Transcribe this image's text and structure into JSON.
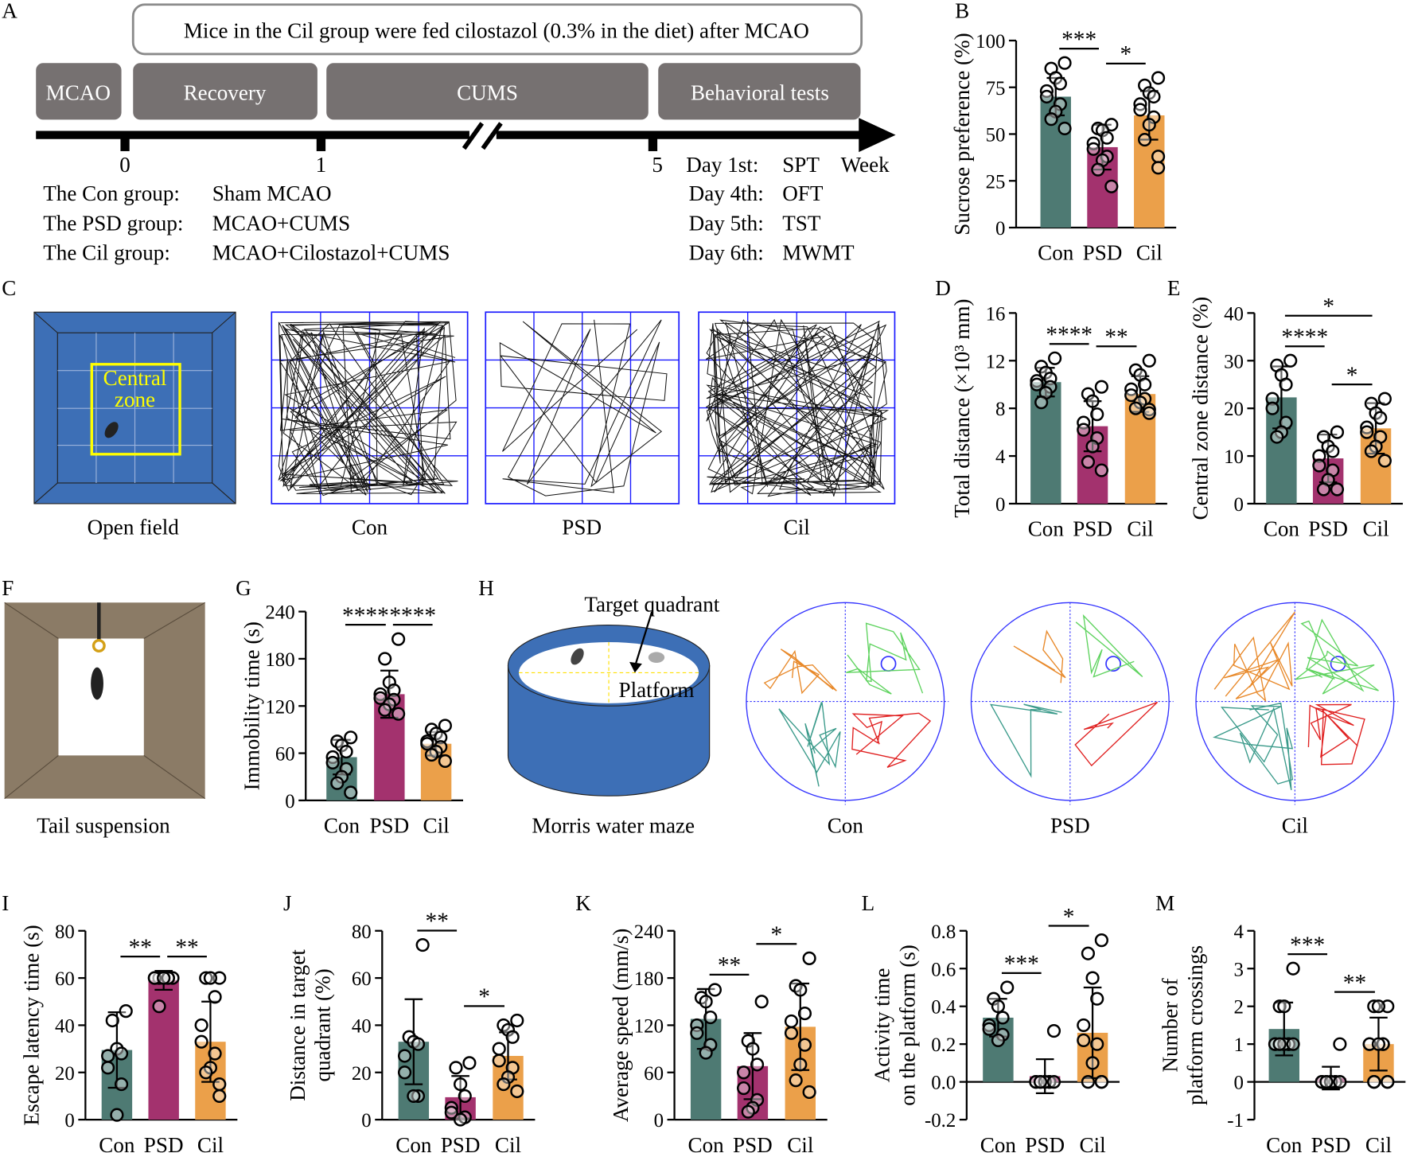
{
  "panel_a": {
    "label": "A",
    "note": "Mice in the Cil group were fed cilostazol (0.3% in the diet) after MCAO",
    "phases": [
      "MCAO",
      "Recovery",
      "CUMS",
      "Behavioral tests"
    ],
    "timeline_ticks": [
      "0",
      "1",
      "5"
    ],
    "unit": "Week",
    "groups": [
      [
        "The Con group:",
        "Sham MCAO"
      ],
      [
        "The PSD group:",
        "MCAO+CUMS"
      ],
      [
        "The  Cil  group:",
        "MCAO+Cilostazol+CUMS"
      ]
    ],
    "schedule": [
      [
        "Day  1st:",
        "SPT"
      ],
      [
        "Day 4th:",
        "OFT"
      ],
      [
        "Day 5th:",
        "TST"
      ],
      [
        "Day 6th:",
        "MWMT"
      ]
    ]
  },
  "panel_c": {
    "label": "C",
    "arena": "Open field",
    "zone": [
      "Central",
      "zone"
    ],
    "groups": [
      "Con",
      "PSD",
      "Cil"
    ]
  },
  "panel_f": {
    "label": "F",
    "caption": "Tail suspension"
  },
  "panel_h": {
    "label": "H",
    "target": "Target quadrant",
    "platform": "Platform",
    "caption": "Morris water maze",
    "groups": [
      "Con",
      "PSD",
      "Cil"
    ]
  },
  "chart_data": [
    {
      "type": "bar",
      "panel": "B",
      "ylabel": [
        "Sucrose preference (%)"
      ],
      "categories": [
        "Con",
        "PSD",
        "Cil"
      ],
      "colors": [
        "#4e7a73",
        "#a3326e",
        "#eba04a"
      ],
      "values": [
        70,
        43,
        60
      ],
      "errors": [
        10,
        12,
        13
      ],
      "points": [
        [
          88,
          85,
          80,
          77,
          73,
          70,
          66,
          62,
          58,
          53
        ],
        [
          55,
          53,
          52,
          48,
          45,
          42,
          38,
          36,
          31,
          22
        ],
        [
          80,
          76,
          72,
          70,
          66,
          63,
          59,
          55,
          47,
          38,
          32
        ]
      ],
      "ylim": [
        0,
        100
      ],
      "yticks": [
        0,
        25,
        50,
        75,
        100
      ],
      "comparisons": [
        {
          "label": "***",
          "between": [
            "Con",
            "PSD"
          ]
        },
        {
          "label": "*",
          "between": [
            "PSD",
            "Cil"
          ]
        }
      ]
    },
    {
      "type": "bar",
      "panel": "D",
      "ylabel": [
        "Total distance (×10³ mm)"
      ],
      "categories": [
        "Con",
        "PSD",
        "Cil"
      ],
      "colors": [
        "#4e7a73",
        "#a3326e",
        "#eba04a"
      ],
      "values": [
        10.2,
        6.5,
        9.2
      ],
      "errors": [
        1.2,
        2.1,
        1.5
      ],
      "points": [
        [
          12.2,
          11.5,
          11,
          10.5,
          10.3,
          10,
          9.8,
          9.3,
          8.5
        ],
        [
          9.8,
          9.2,
          8.6,
          7.5,
          6.8,
          6.2,
          5.5,
          4.8,
          3.5,
          2.8
        ],
        [
          12,
          11.2,
          10.8,
          10,
          9.6,
          9.1,
          8.8,
          8.5,
          8,
          7.9,
          7.6
        ]
      ],
      "ylim": [
        0,
        16
      ],
      "yticks": [
        0,
        4,
        8,
        12,
        16
      ],
      "comparisons": [
        {
          "label": "****",
          "between": [
            "Con",
            "PSD"
          ]
        },
        {
          "label": "**",
          "between": [
            "PSD",
            "Cil"
          ]
        }
      ]
    },
    {
      "type": "bar",
      "panel": "E",
      "ylabel": [
        "Central zone distance (%)"
      ],
      "categories": [
        "Con",
        "PSD",
        "Cil"
      ],
      "colors": [
        "#4e7a73",
        "#a3326e",
        "#eba04a"
      ],
      "values": [
        22.3,
        9.5,
        15.8
      ],
      "errors": [
        6.5,
        5,
        5.3
      ],
      "points": [
        [
          30,
          29,
          27,
          25,
          22,
          20,
          17,
          15,
          14
        ],
        [
          15,
          14,
          12,
          11,
          10,
          8,
          7,
          5,
          3,
          3
        ],
        [
          22,
          21,
          19,
          18,
          16,
          15,
          14,
          12,
          11,
          9
        ]
      ],
      "ylim": [
        0,
        40
      ],
      "yticks": [
        0,
        10,
        20,
        30,
        40
      ],
      "comparisons": [
        {
          "label": "****",
          "between": [
            "Con",
            "PSD"
          ]
        },
        {
          "label": "*",
          "between": [
            "PSD",
            "Cil"
          ]
        },
        {
          "label": "*",
          "between": [
            "Con",
            "Cil"
          ]
        }
      ]
    },
    {
      "type": "bar",
      "panel": "G",
      "ylabel": [
        "Immobility time (s)"
      ],
      "categories": [
        "Con",
        "PSD",
        "Cil"
      ],
      "colors": [
        "#4e7a73",
        "#a3326e",
        "#eba04a"
      ],
      "values": [
        55,
        135,
        72
      ],
      "errors": [
        22,
        30,
        15
      ],
      "points": [
        [
          80,
          75,
          70,
          62,
          55,
          48,
          40,
          30,
          22,
          10
        ],
        [
          205,
          180,
          150,
          140,
          135,
          130,
          128,
          122,
          115,
          110
        ],
        [
          95,
          90,
          85,
          80,
          75,
          72,
          68,
          62,
          58,
          50
        ]
      ],
      "ylim": [
        0,
        240
      ],
      "yticks": [
        0,
        60,
        120,
        180,
        240
      ],
      "comparisons": [
        {
          "label": "****",
          "between": [
            "Con",
            "PSD"
          ]
        },
        {
          "label": "****",
          "between": [
            "PSD",
            "Cil"
          ]
        }
      ]
    },
    {
      "type": "bar",
      "panel": "I",
      "ylabel": [
        "Escape latency time (s)"
      ],
      "categories": [
        "Con",
        "PSD",
        "Cil"
      ],
      "colors": [
        "#4e7a73",
        "#a3326e",
        "#eba04a"
      ],
      "values": [
        29.5,
        59,
        33
      ],
      "errors": [
        16,
        4,
        17
      ],
      "points": [
        [
          46,
          42,
          30,
          28,
          27,
          22,
          15,
          2
        ],
        [
          60,
          60,
          60,
          60,
          60,
          60,
          60,
          60,
          48
        ],
        [
          60,
          60,
          60,
          52,
          40,
          33,
          28,
          22,
          20,
          15,
          10
        ]
      ],
      "ylim": [
        0,
        80
      ],
      "yticks": [
        0,
        20,
        40,
        60,
        80
      ],
      "comparisons": [
        {
          "label": "**",
          "between": [
            "Con",
            "PSD"
          ]
        },
        {
          "label": "**",
          "between": [
            "PSD",
            "Cil"
          ]
        }
      ]
    },
    {
      "type": "bar",
      "panel": "J",
      "ylabel": [
        "Distance in target",
        "quadrant (%)"
      ],
      "categories": [
        "Con",
        "PSD",
        "Cil"
      ],
      "colors": [
        "#4e7a73",
        "#a3326e",
        "#eba04a"
      ],
      "values": [
        33,
        9.5,
        27
      ],
      "errors": [
        18,
        9,
        10
      ],
      "points": [
        [
          74,
          35,
          33,
          32,
          27,
          20,
          10,
          10
        ],
        [
          24,
          22,
          15,
          10,
          5,
          3,
          1,
          0
        ],
        [
          42,
          40,
          38,
          35,
          30,
          25,
          22,
          18,
          15,
          12
        ]
      ],
      "ylim": [
        0,
        80
      ],
      "yticks": [
        0,
        20,
        40,
        60,
        80
      ],
      "comparisons": [
        {
          "label": "**",
          "between": [
            "Con",
            "PSD"
          ]
        },
        {
          "label": "*",
          "between": [
            "PSD",
            "Cil"
          ]
        }
      ]
    },
    {
      "type": "bar",
      "panel": "K",
      "ylabel": [
        "Average speed (mm/s)"
      ],
      "categories": [
        "Con",
        "PSD",
        "Cil"
      ],
      "colors": [
        "#4e7a73",
        "#a3326e",
        "#eba04a"
      ],
      "values": [
        128,
        68,
        118
      ],
      "errors": [
        38,
        42,
        55
      ],
      "points": [
        [
          165,
          155,
          150,
          130,
          120,
          110,
          95,
          85
        ],
        [
          150,
          100,
          90,
          70,
          60,
          40,
          25,
          15,
          10
        ],
        [
          205,
          170,
          165,
          135,
          125,
          110,
          95,
          70,
          50,
          35
        ]
      ],
      "ylim": [
        0,
        240
      ],
      "yticks": [
        0,
        60,
        120,
        180,
        240
      ],
      "comparisons": [
        {
          "label": "**",
          "between": [
            "Con",
            "PSD"
          ]
        },
        {
          "label": "*",
          "between": [
            "PSD",
            "Cil"
          ]
        }
      ]
    },
    {
      "type": "bar",
      "panel": "L",
      "ylabel": [
        "Activity time",
        "on the platform (s)"
      ],
      "categories": [
        "Con",
        "PSD",
        "Cil"
      ],
      "colors": [
        "#4e7a73",
        "#a3326e",
        "#eba04a"
      ],
      "values": [
        0.34,
        0.03,
        0.26
      ],
      "errors": [
        0.1,
        0.09,
        0.24
      ],
      "points": [
        [
          0.5,
          0.44,
          0.4,
          0.34,
          0.3,
          0.28,
          0.25,
          0.22
        ],
        [
          0.27,
          0,
          0,
          0,
          0,
          0,
          0,
          0,
          0,
          0
        ],
        [
          0.75,
          0.68,
          0.55,
          0.44,
          0.3,
          0.22,
          0.2,
          0.1,
          0,
          0,
          0
        ]
      ],
      "ylim": [
        -0.2,
        0.8
      ],
      "yticks": [
        -0.2,
        {
          "value": 0,
          "label": "0.0"
        },
        0.2,
        0.4,
        0.6,
        0.8
      ],
      "comparisons": [
        {
          "label": "***",
          "between": [
            "Con",
            "PSD"
          ]
        },
        {
          "label": "*",
          "between": [
            "PSD",
            "Cil"
          ]
        }
      ]
    },
    {
      "type": "bar",
      "panel": "M",
      "ylabel": [
        "Number of",
        "platform crossings"
      ],
      "categories": [
        "Con",
        "PSD",
        "Cil"
      ],
      "colors": [
        "#4e7a73",
        "#a3326e",
        "#eba04a"
      ],
      "values": [
        1.4,
        0.1,
        1
      ],
      "errors": [
        0.7,
        0.3,
        0.7
      ],
      "points": [
        [
          3,
          2,
          2,
          1,
          1,
          1,
          1,
          1,
          1,
          1
        ],
        [
          1,
          0,
          0,
          0,
          0,
          0,
          0,
          0,
          0,
          0
        ],
        [
          2,
          2,
          2,
          1,
          1,
          1,
          1,
          1,
          0,
          0,
          0,
          0
        ]
      ],
      "ylim": [
        -1,
        4
      ],
      "yticks": [
        -1,
        0,
        1,
        2,
        3,
        4
      ],
      "comparisons": [
        {
          "label": "***",
          "between": [
            "Con",
            "PSD"
          ]
        },
        {
          "label": "**",
          "between": [
            "PSD",
            "Cil"
          ]
        }
      ]
    }
  ]
}
